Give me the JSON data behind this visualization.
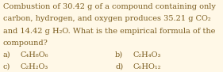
{
  "background_color": "#FFF8E7",
  "text_color": "#7A5C1E",
  "font_size": 7.0,
  "lines": [
    "Combustion of 30.42 g of a compound containing only",
    "carbon, hydrogen, and oxygen produces 35.21 g CO₂",
    "and 14.42 g H₂O. What is the empirical formula of the",
    "compound?"
  ],
  "ans_a_label": "a)",
  "ans_a_formula": "C₄H₈O₆",
  "ans_b_label": "b)",
  "ans_b_formula": "C₂H₄O₃",
  "ans_c_label": "c)",
  "ans_c_formula": "C₂H₂O₃",
  "ans_d_label": "d)",
  "ans_d_formula": "C₆HO₁₂",
  "fig_width": 2.81,
  "fig_height": 0.91,
  "dpi": 100
}
